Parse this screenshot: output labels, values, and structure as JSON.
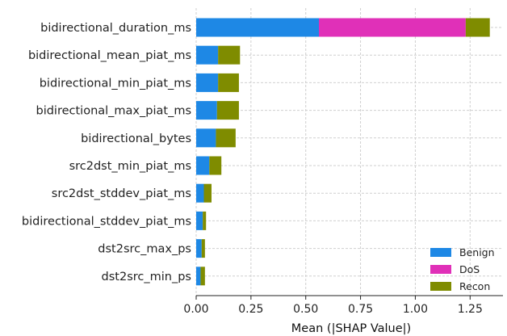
{
  "chart_data": {
    "type": "bar",
    "orientation": "horizontal",
    "stacked": true,
    "categories": [
      "bidirectional_duration_ms",
      "bidirectional_mean_piat_ms",
      "bidirectional_min_piat_ms",
      "bidirectional_max_piat_ms",
      "bidirectional_bytes",
      "src2dst_min_piat_ms",
      "src2dst_stddev_piat_ms",
      "bidirectional_stddev_piat_ms",
      "dst2src_max_ps",
      "dst2src_min_ps"
    ],
    "series": [
      {
        "name": "Benign",
        "color": "#1e88e5",
        "values": [
          0.56,
          0.1,
          0.1,
          0.095,
          0.09,
          0.06,
          0.035,
          0.03,
          0.025,
          0.02
        ]
      },
      {
        "name": "DoS",
        "color": "#e030b8",
        "values": [
          0.67,
          0.0,
          0.0,
          0.0,
          0.0,
          0.0,
          0.0,
          0.0,
          0.0,
          0.0
        ]
      },
      {
        "name": "Recon",
        "color": "#7f8c00",
        "values": [
          0.11,
          0.1,
          0.095,
          0.1,
          0.09,
          0.055,
          0.035,
          0.015,
          0.015,
          0.02
        ]
      }
    ],
    "xlabel": "Mean (|SHAP Value|)",
    "ylabel": "",
    "title": "",
    "xlim": [
      0,
      1.4
    ],
    "xticks": [
      "0.00",
      "0.25",
      "0.50",
      "0.75",
      "1.00",
      "1.25"
    ],
    "grid": true,
    "legend_position": "bottom-right"
  }
}
